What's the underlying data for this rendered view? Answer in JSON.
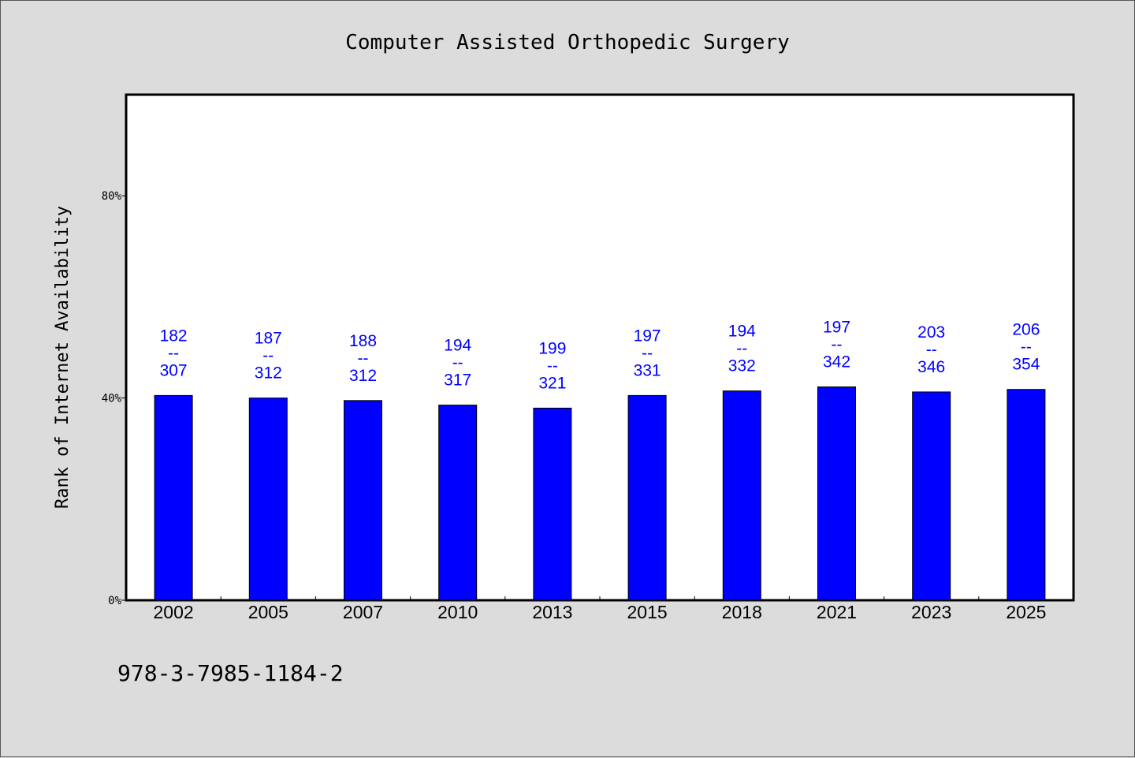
{
  "footer_text": "978-3-7985-1184-2",
  "chart_data": {
    "type": "bar",
    "title": "Computer Assisted Orthopedic Surgery",
    "ylabel": "Rank of Internet Availability",
    "xlabel": "",
    "ylim": [
      0,
      100
    ],
    "yticks": [
      {
        "value": 0,
        "label": "0%"
      },
      {
        "value": 40,
        "label": "40%"
      },
      {
        "value": 80,
        "label": "80%"
      }
    ],
    "grid": false,
    "bar_color": "#0000ff",
    "label_color": "#0000cc",
    "categories": [
      "2002",
      "2005",
      "2007",
      "2010",
      "2013",
      "2015",
      "2018",
      "2021",
      "2023",
      "2025"
    ],
    "values": [
      40.5,
      40.0,
      39.5,
      38.6,
      38.0,
      40.5,
      41.4,
      42.2,
      41.2,
      41.7
    ],
    "bar_labels": [
      {
        "top": "182",
        "sep": "--",
        "bottom": "307"
      },
      {
        "top": "187",
        "sep": "--",
        "bottom": "312"
      },
      {
        "top": "188",
        "sep": "--",
        "bottom": "312"
      },
      {
        "top": "194",
        "sep": "--",
        "bottom": "317"
      },
      {
        "top": "199",
        "sep": "--",
        "bottom": "321"
      },
      {
        "top": "197",
        "sep": "--",
        "bottom": "331"
      },
      {
        "top": "194",
        "sep": "--",
        "bottom": "332"
      },
      {
        "top": "197",
        "sep": "--",
        "bottom": "342"
      },
      {
        "top": "203",
        "sep": "--",
        "bottom": "346"
      },
      {
        "top": "206",
        "sep": "--",
        "bottom": "354"
      }
    ]
  }
}
